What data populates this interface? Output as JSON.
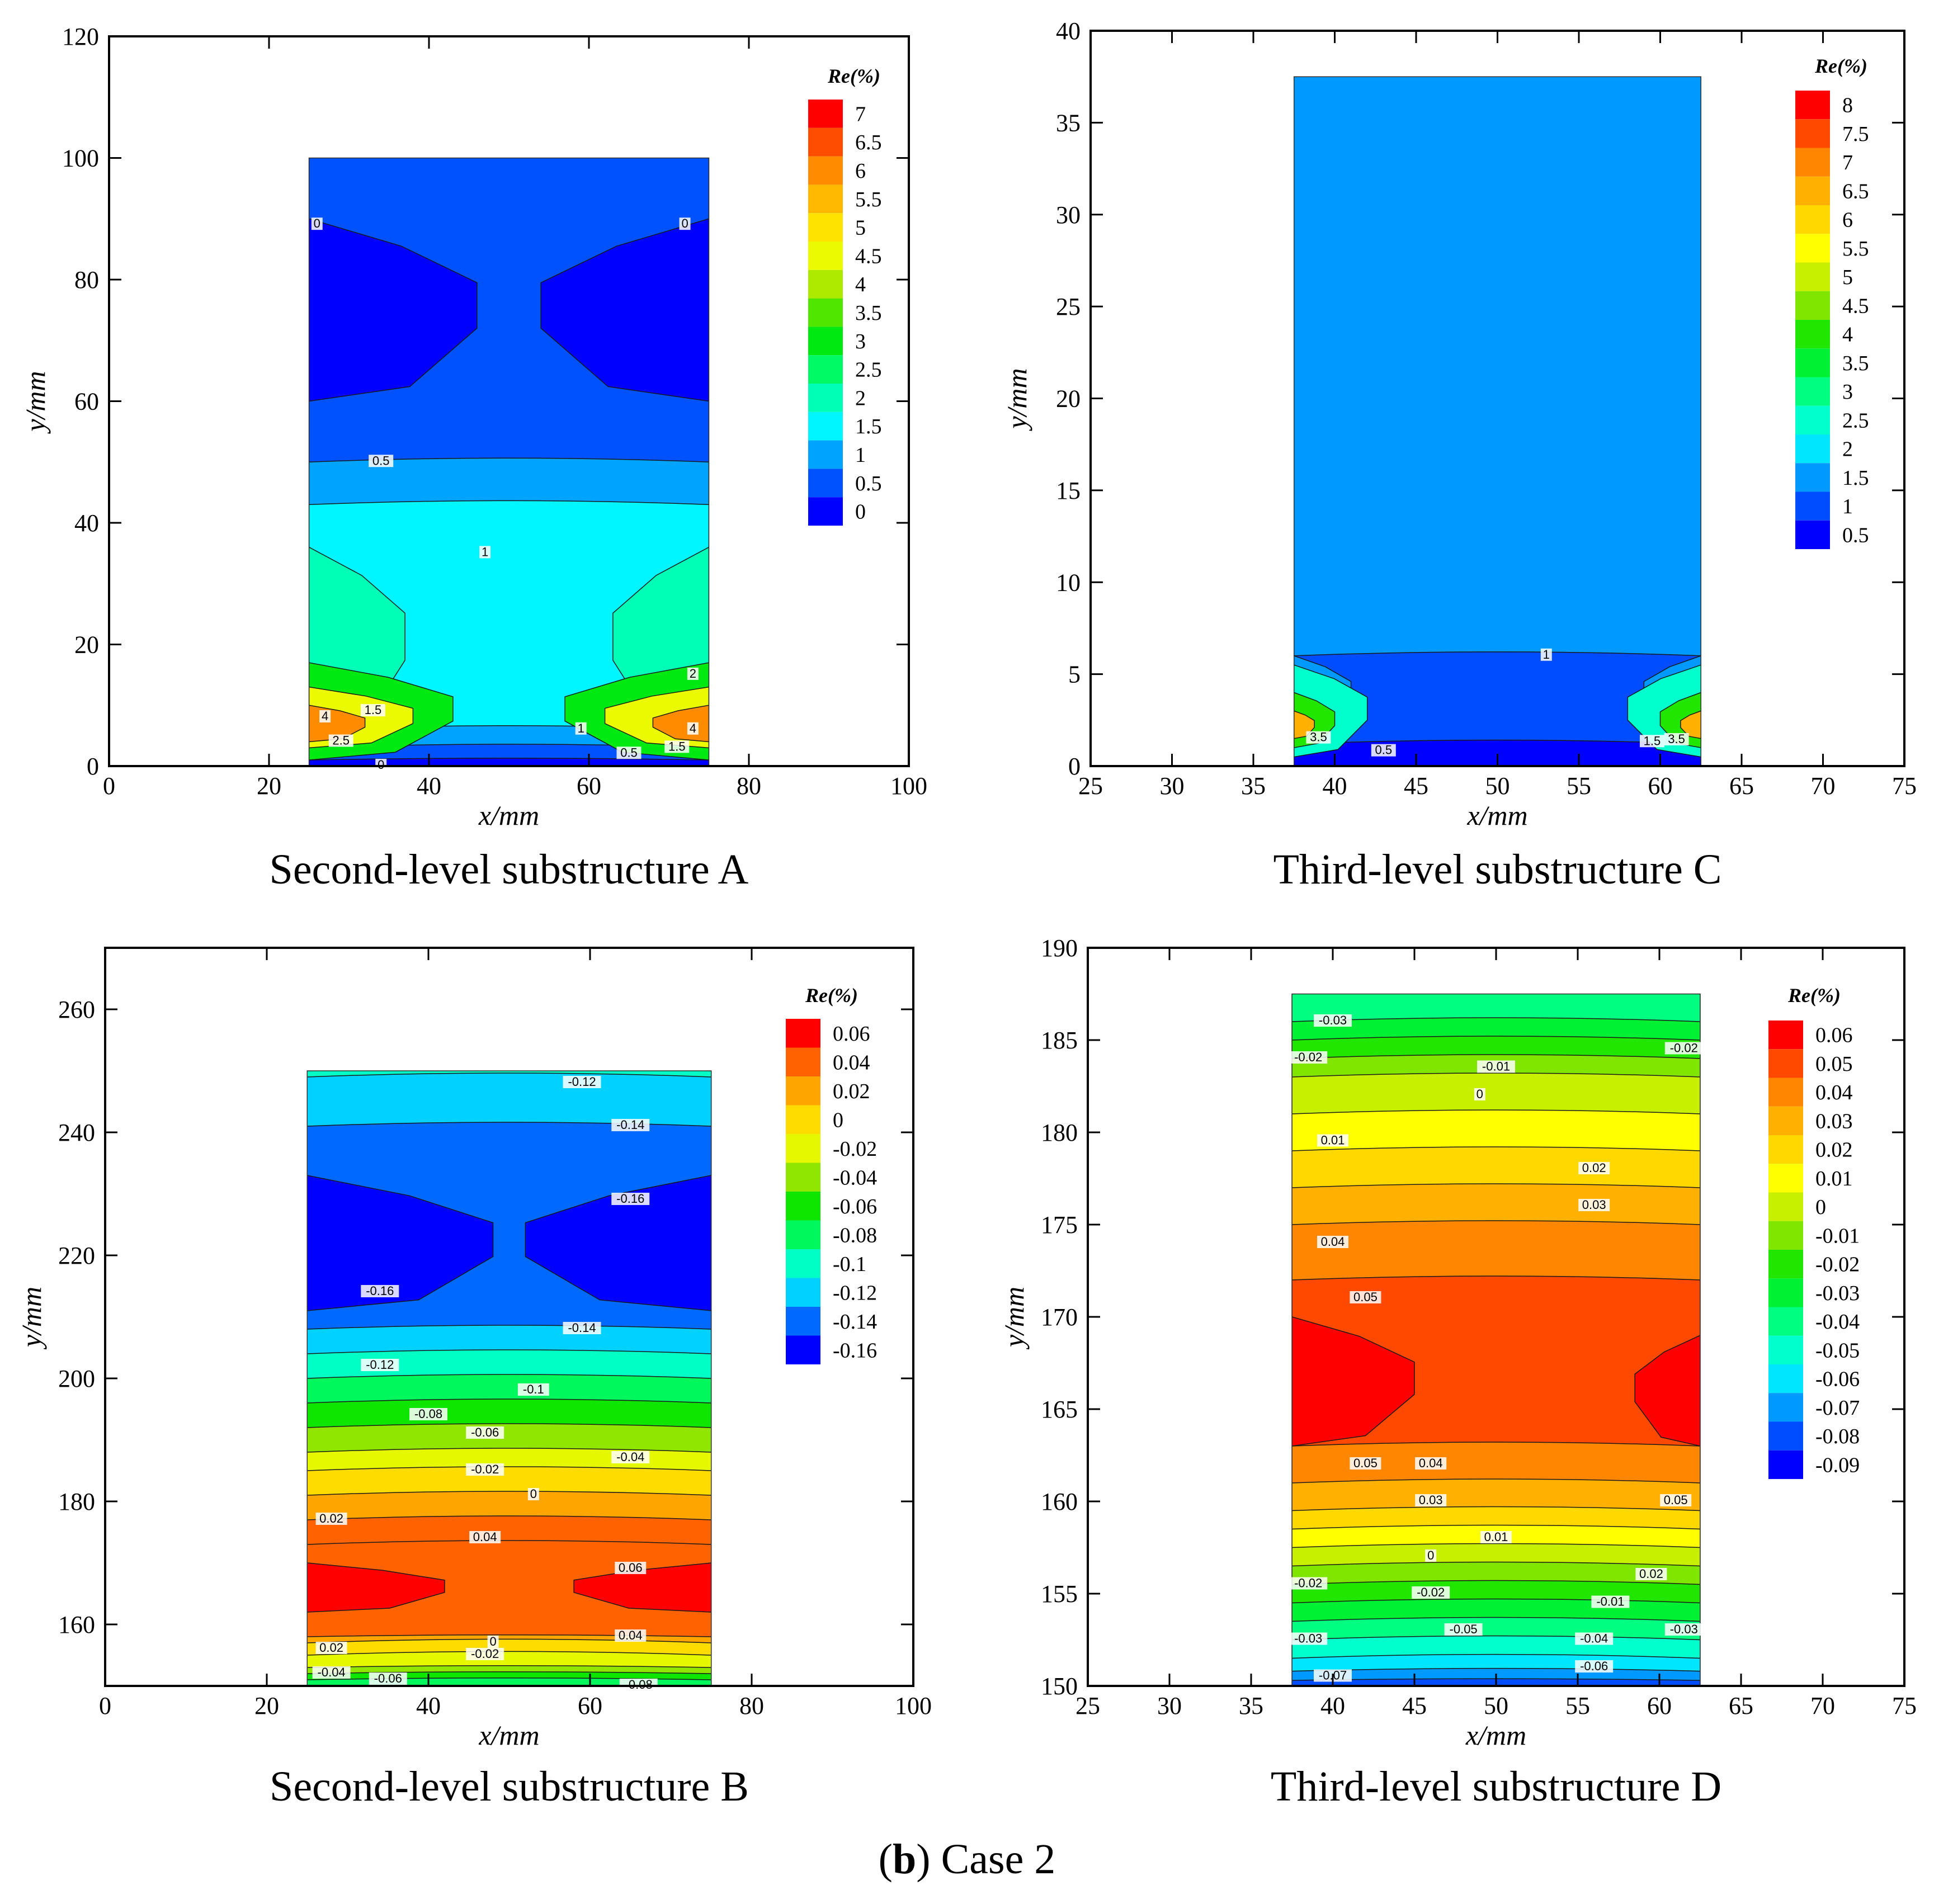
{
  "figure_caption": {
    "prefix": "(",
    "letter": "b",
    "suffix": ") Case 2"
  },
  "chart_data": [
    {
      "id": "A",
      "type": "heatmap",
      "title": "Second-level substructure A",
      "xlabel": "x/mm",
      "ylabel": "y/mm",
      "xlim": [
        0,
        100
      ],
      "ylim": [
        0,
        120
      ],
      "xticks": [
        0,
        20,
        40,
        60,
        80,
        100
      ],
      "yticks": [
        0,
        20,
        40,
        60,
        80,
        100,
        120
      ],
      "region": {
        "x": [
          25,
          75
        ],
        "y": [
          0,
          100
        ]
      },
      "legend": {
        "title": "Re(%)",
        "levels": [
          7,
          6.5,
          6,
          5.5,
          5,
          4.5,
          4,
          3.5,
          3,
          2.5,
          2,
          1.5,
          1,
          0.5,
          0
        ]
      },
      "bands": [
        {
          "y0": 50,
          "y1": 100,
          "value": 0.5
        },
        {
          "y0": 43,
          "y1": 50,
          "value": 1
        },
        {
          "y0": 6,
          "y1": 43,
          "value": 1.5
        },
        {
          "y0": 3,
          "y1": 6,
          "value": 1
        },
        {
          "y0": 1,
          "y1": 3,
          "value": 0.5
        },
        {
          "y0": 0,
          "y1": 1,
          "value": 0
        }
      ],
      "blobs": [
        {
          "side": "left",
          "y0": 60,
          "y1": 90,
          "reach": 42,
          "value": 0
        },
        {
          "side": "right",
          "y0": 60,
          "y1": 90,
          "reach": 42,
          "value": 0
        },
        {
          "side": "left",
          "y0": 5,
          "y1": 36,
          "reach": 24,
          "value": 2
        },
        {
          "side": "right",
          "y0": 5,
          "y1": 36,
          "reach": 24,
          "value": 2
        },
        {
          "side": "left",
          "y0": 1,
          "y1": 17,
          "reach": 36,
          "value": 3
        },
        {
          "side": "right",
          "y0": 1,
          "y1": 17,
          "reach": 36,
          "value": 3
        },
        {
          "side": "left",
          "y0": 3,
          "y1": 13,
          "reach": 26,
          "value": 4.5
        },
        {
          "side": "right",
          "y0": 3,
          "y1": 13,
          "reach": 26,
          "value": 4.5
        },
        {
          "side": "left",
          "y0": 4,
          "y1": 10,
          "reach": 14,
          "value": 6
        },
        {
          "side": "right",
          "y0": 4,
          "y1": 10,
          "reach": 14,
          "value": 6
        }
      ],
      "annotations": [
        {
          "x": 26,
          "y": 89,
          "text": "0"
        },
        {
          "x": 72,
          "y": 89,
          "text": "0"
        },
        {
          "x": 34,
          "y": 50,
          "text": "0.5"
        },
        {
          "x": 47,
          "y": 35,
          "text": "1"
        },
        {
          "x": 73,
          "y": 15,
          "text": "2"
        },
        {
          "x": 33,
          "y": 9,
          "text": "1.5"
        },
        {
          "x": 27,
          "y": 8,
          "text": "4"
        },
        {
          "x": 29,
          "y": 4,
          "text": "2.5"
        },
        {
          "x": 59,
          "y": 6,
          "text": "1"
        },
        {
          "x": 65,
          "y": 2,
          "text": "0.5"
        },
        {
          "x": 71,
          "y": 3,
          "text": "1.5"
        },
        {
          "x": 73,
          "y": 6,
          "text": "4"
        },
        {
          "x": 34,
          "y": 0,
          "text": "0"
        }
      ]
    },
    {
      "id": "C",
      "type": "heatmap",
      "title": "Third-level substructure C",
      "xlabel": "x/mm",
      "ylabel": "y/mm",
      "xlim": [
        25,
        75
      ],
      "ylim": [
        0,
        40
      ],
      "xticks": [
        25,
        30,
        35,
        40,
        45,
        50,
        55,
        60,
        65,
        70,
        75
      ],
      "yticks": [
        0,
        5,
        10,
        15,
        20,
        25,
        30,
        35,
        40
      ],
      "region": {
        "x": [
          37.5,
          62.5
        ],
        "y": [
          0,
          37.5
        ]
      },
      "legend": {
        "title": "Re(%)",
        "levels": [
          8,
          7.5,
          7,
          6.5,
          6,
          5.5,
          5,
          4.5,
          4,
          3.5,
          3,
          2.5,
          2,
          1.5,
          1,
          0.5
        ]
      },
      "bands": [
        {
          "y0": 6,
          "y1": 37.5,
          "value": 1.5
        },
        {
          "y0": 1.2,
          "y1": 6,
          "value": 1
        },
        {
          "y0": 0,
          "y1": 1.2,
          "value": 0.5
        }
      ],
      "blobs": [
        {
          "side": "left",
          "y0": 2,
          "y1": 6,
          "reach": 14,
          "value": 1.5
        },
        {
          "side": "right",
          "y0": 2,
          "y1": 6,
          "reach": 14,
          "value": 1.5
        },
        {
          "side": "left",
          "y0": 0.5,
          "y1": 5.5,
          "reach": 18,
          "value": 2.5
        },
        {
          "side": "right",
          "y0": 0.5,
          "y1": 5.5,
          "reach": 18,
          "value": 2.5
        },
        {
          "side": "left",
          "y0": 1,
          "y1": 4,
          "reach": 10,
          "value": 4
        },
        {
          "side": "right",
          "y0": 1,
          "y1": 4,
          "reach": 10,
          "value": 4
        },
        {
          "side": "left",
          "y0": 1.5,
          "y1": 3,
          "reach": 5,
          "value": 6.5
        },
        {
          "side": "right",
          "y0": 1.5,
          "y1": 3,
          "reach": 5,
          "value": 6.5
        }
      ],
      "annotations": [
        {
          "x": 53,
          "y": 6,
          "text": "1"
        },
        {
          "x": 43,
          "y": 0.8,
          "text": "0.5"
        },
        {
          "x": 59.5,
          "y": 1.3,
          "text": "1.5"
        },
        {
          "x": 61,
          "y": 1.4,
          "text": "3.5"
        },
        {
          "x": 39,
          "y": 1.5,
          "text": "3.5"
        }
      ]
    },
    {
      "id": "B",
      "type": "heatmap",
      "title": "Second-level substructure B",
      "xlabel": "x/mm",
      "ylabel": "y/mm",
      "xlim": [
        0,
        100
      ],
      "ylim": [
        150,
        270
      ],
      "xticks": [
        0,
        20,
        40,
        60,
        80,
        100
      ],
      "yticks": [
        160,
        180,
        200,
        220,
        240,
        260
      ],
      "region": {
        "x": [
          25,
          75
        ],
        "y": [
          150,
          250
        ]
      },
      "legend": {
        "title": "Re(%)",
        "levels": [
          0.06,
          0.04,
          0.02,
          0,
          -0.02,
          -0.04,
          -0.06,
          -0.08,
          -0.1,
          -0.12,
          -0.14,
          -0.16
        ]
      },
      "bands": [
        {
          "y0": 249,
          "y1": 250,
          "value": -0.1
        },
        {
          "y0": 241,
          "y1": 249,
          "value": -0.12
        },
        {
          "y0": 208,
          "y1": 241,
          "value": -0.14
        },
        {
          "y0": 204,
          "y1": 208,
          "value": -0.12
        },
        {
          "y0": 200,
          "y1": 204,
          "value": -0.1
        },
        {
          "y0": 196,
          "y1": 200,
          "value": -0.08
        },
        {
          "y0": 192,
          "y1": 196,
          "value": -0.06
        },
        {
          "y0": 188,
          "y1": 192,
          "value": -0.04
        },
        {
          "y0": 185,
          "y1": 188,
          "value": -0.02
        },
        {
          "y0": 181,
          "y1": 185,
          "value": 0
        },
        {
          "y0": 177,
          "y1": 181,
          "value": 0.02
        },
        {
          "y0": 173,
          "y1": 177,
          "value": 0.04
        },
        {
          "y0": 158,
          "y1": 173,
          "value": 0.04
        },
        {
          "y0": 157,
          "y1": 158,
          "value": 0.02
        },
        {
          "y0": 155,
          "y1": 157,
          "value": 0
        },
        {
          "y0": 153,
          "y1": 155,
          "value": -0.02
        },
        {
          "y0": 152,
          "y1": 153,
          "value": -0.04
        },
        {
          "y0": 151,
          "y1": 152,
          "value": -0.06
        },
        {
          "y0": 150,
          "y1": 151,
          "value": -0.08
        }
      ],
      "blobs": [
        {
          "side": "left",
          "y0": 211,
          "y1": 233,
          "reach": 46,
          "value": -0.16
        },
        {
          "side": "right",
          "y0": 211,
          "y1": 233,
          "reach": 46,
          "value": -0.16
        },
        {
          "side": "left",
          "y0": 162,
          "y1": 170,
          "reach": 34,
          "value": 0.06
        },
        {
          "side": "right",
          "y0": 162,
          "y1": 170,
          "reach": 34,
          "value": 0.06
        }
      ],
      "annotations": [
        {
          "x": 59,
          "y": 248,
          "text": "-0.12"
        },
        {
          "x": 65,
          "y": 241,
          "text": "-0.14"
        },
        {
          "x": 65,
          "y": 229,
          "text": "-0.16"
        },
        {
          "x": 34,
          "y": 214,
          "text": "-0.16"
        },
        {
          "x": 59,
          "y": 208,
          "text": "-0.14"
        },
        {
          "x": 34,
          "y": 202,
          "text": "-0.12"
        },
        {
          "x": 53,
          "y": 198,
          "text": "-0.1"
        },
        {
          "x": 40,
          "y": 194,
          "text": "-0.08"
        },
        {
          "x": 47,
          "y": 191,
          "text": "-0.06"
        },
        {
          "x": 65,
          "y": 187,
          "text": "-0.04"
        },
        {
          "x": 47,
          "y": 185,
          "text": "-0.02"
        },
        {
          "x": 53,
          "y": 181,
          "text": "0"
        },
        {
          "x": 28,
          "y": 177,
          "text": "0.02"
        },
        {
          "x": 47,
          "y": 174,
          "text": "0.04"
        },
        {
          "x": 65,
          "y": 169,
          "text": "0.06"
        },
        {
          "x": 65,
          "y": 158,
          "text": "0.04"
        },
        {
          "x": 48,
          "y": 157,
          "text": "0"
        },
        {
          "x": 28,
          "y": 156,
          "text": "0.02"
        },
        {
          "x": 47,
          "y": 155,
          "text": "-0.02"
        },
        {
          "x": 28,
          "y": 152,
          "text": "-0.04"
        },
        {
          "x": 35,
          "y": 151,
          "text": "-0.06"
        },
        {
          "x": 66,
          "y": 150,
          "text": "-0.08"
        }
      ]
    },
    {
      "id": "D",
      "type": "heatmap",
      "title": "Third-level substructure D",
      "xlabel": "x/mm",
      "ylabel": "y/mm",
      "xlim": [
        25,
        75
      ],
      "ylim": [
        150,
        190
      ],
      "xticks": [
        25,
        30,
        35,
        40,
        45,
        50,
        55,
        60,
        65,
        70,
        75
      ],
      "yticks": [
        150,
        155,
        160,
        165,
        170,
        175,
        180,
        185,
        190
      ],
      "region": {
        "x": [
          37.5,
          62.5
        ],
        "y": [
          150,
          187.5
        ]
      },
      "legend": {
        "title": "Re(%)",
        "levels": [
          0.06,
          0.05,
          0.04,
          0.03,
          0.02,
          0.01,
          0,
          -0.01,
          -0.02,
          -0.03,
          -0.04,
          -0.05,
          -0.06,
          -0.07,
          -0.08,
          -0.09
        ]
      },
      "bands": [
        {
          "y0": 186,
          "y1": 187.5,
          "value": -0.04
        },
        {
          "y0": 185,
          "y1": 186,
          "value": -0.03
        },
        {
          "y0": 184,
          "y1": 185,
          "value": -0.02
        },
        {
          "y0": 183,
          "y1": 184,
          "value": -0.01
        },
        {
          "y0": 181,
          "y1": 183,
          "value": 0
        },
        {
          "y0": 179,
          "y1": 181,
          "value": 0.01
        },
        {
          "y0": 177,
          "y1": 179,
          "value": 0.02
        },
        {
          "y0": 175,
          "y1": 177,
          "value": 0.03
        },
        {
          "y0": 172,
          "y1": 175,
          "value": 0.04
        },
        {
          "y0": 163,
          "y1": 172,
          "value": 0.05
        },
        {
          "y0": 161,
          "y1": 163,
          "value": 0.04
        },
        {
          "y0": 159.5,
          "y1": 161,
          "value": 0.03
        },
        {
          "y0": 158.5,
          "y1": 159.5,
          "value": 0.02
        },
        {
          "y0": 157.5,
          "y1": 158.5,
          "value": 0.01
        },
        {
          "y0": 156.5,
          "y1": 157.5,
          "value": 0
        },
        {
          "y0": 155.5,
          "y1": 156.5,
          "value": -0.01
        },
        {
          "y0": 154.5,
          "y1": 155.5,
          "value": -0.02
        },
        {
          "y0": 153.5,
          "y1": 154.5,
          "value": -0.03
        },
        {
          "y0": 152.5,
          "y1": 153.5,
          "value": -0.04
        },
        {
          "y0": 151.5,
          "y1": 152.5,
          "value": -0.05
        },
        {
          "y0": 150.8,
          "y1": 151.5,
          "value": -0.06
        },
        {
          "y0": 150.3,
          "y1": 150.8,
          "value": -0.07
        },
        {
          "y0": 150,
          "y1": 150.3,
          "value": -0.08
        }
      ],
      "blobs": [
        {
          "side": "left",
          "y0": 163,
          "y1": 170,
          "reach": 30,
          "value": 0.06
        },
        {
          "side": "right",
          "y0": 163,
          "y1": 169,
          "reach": 16,
          "value": 0.06
        }
      ],
      "annotations": [
        {
          "x": 40,
          "y": 186,
          "text": "-0.03"
        },
        {
          "x": 38.5,
          "y": 184,
          "text": "-0.02"
        },
        {
          "x": 61.5,
          "y": 184.5,
          "text": "-0.02"
        },
        {
          "x": 50,
          "y": 183.5,
          "text": "-0.01"
        },
        {
          "x": 49,
          "y": 182,
          "text": "0"
        },
        {
          "x": 40,
          "y": 179.5,
          "text": "0.01"
        },
        {
          "x": 56,
          "y": 178,
          "text": "0.02"
        },
        {
          "x": 56,
          "y": 176,
          "text": "0.03"
        },
        {
          "x": 40,
          "y": 174,
          "text": "0.04"
        },
        {
          "x": 42,
          "y": 171,
          "text": "0.05"
        },
        {
          "x": 42,
          "y": 162,
          "text": "0.05"
        },
        {
          "x": 46,
          "y": 162,
          "text": "0.04"
        },
        {
          "x": 61,
          "y": 160,
          "text": "0.05"
        },
        {
          "x": 46,
          "y": 160,
          "text": "0.03"
        },
        {
          "x": 50,
          "y": 158,
          "text": "0.01"
        },
        {
          "x": 46,
          "y": 157,
          "text": "0"
        },
        {
          "x": 59.5,
          "y": 156,
          "text": "0.02"
        },
        {
          "x": 38.5,
          "y": 155.5,
          "text": "-0.02"
        },
        {
          "x": 46,
          "y": 155,
          "text": "-0.02"
        },
        {
          "x": 57,
          "y": 154.5,
          "text": "-0.01"
        },
        {
          "x": 48,
          "y": 153,
          "text": "-0.05"
        },
        {
          "x": 38.5,
          "y": 152.5,
          "text": "-0.03"
        },
        {
          "x": 61.5,
          "y": 153,
          "text": "-0.03"
        },
        {
          "x": 56,
          "y": 152.5,
          "text": "-0.04"
        },
        {
          "x": 56,
          "y": 151,
          "text": "-0.06"
        },
        {
          "x": 40,
          "y": 150.5,
          "text": "-0.07"
        }
      ]
    }
  ]
}
